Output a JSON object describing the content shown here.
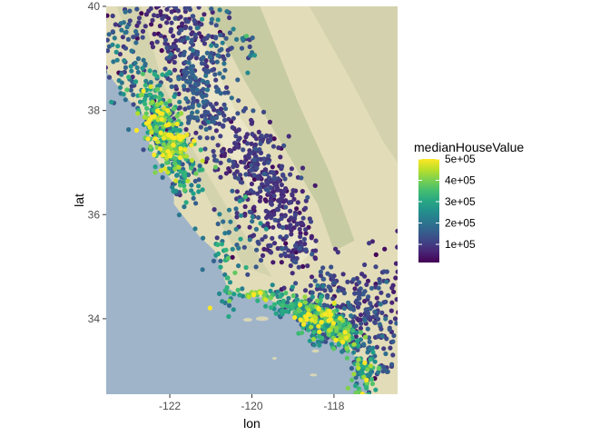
{
  "chart_data": {
    "type": "scatter",
    "title": "",
    "xlabel": "lon",
    "ylabel": "lat",
    "xlim": [
      -123.55,
      -116.45
    ],
    "ylim": [
      32.55,
      40.0
    ],
    "x_ticks": [
      -122,
      -120,
      -118
    ],
    "x_tick_labels": [
      "-122",
      "-120",
      "-118"
    ],
    "y_ticks": [
      34,
      36,
      38,
      40
    ],
    "y_tick_labels": [
      "34",
      "36",
      "38",
      "40"
    ],
    "grid": false,
    "basemap": "terrain",
    "legend": {
      "title": "medianHouseValue",
      "placement": "right",
      "min": 15000,
      "max": 500000,
      "ticks": [
        100000,
        200000,
        300000,
        400000,
        500000
      ],
      "tick_labels": [
        "1e+05",
        "2e+05",
        "3e+05",
        "4e+05",
        "5e+05"
      ],
      "palette": [
        "#440154",
        "#3b528b",
        "#21918c",
        "#5ec962",
        "#fde725"
      ]
    },
    "series": [
      {
        "clusters": [
          {
            "lon": -122.1,
            "lat": 37.5,
            "sd_lon": 0.25,
            "sd_lat": 0.3,
            "n": 140,
            "value_mean": 330000,
            "value_sd": 120000
          },
          {
            "lon": -122.3,
            "lat": 37.85,
            "sd_lon": 0.15,
            "sd_lat": 0.15,
            "n": 90,
            "value_mean": 300000,
            "value_sd": 140000
          },
          {
            "lon": -121.9,
            "lat": 37.3,
            "sd_lon": 0.2,
            "sd_lat": 0.15,
            "n": 80,
            "value_mean": 380000,
            "value_sd": 100000
          },
          {
            "lon": -121.6,
            "lat": 37.0,
            "sd_lon": 0.3,
            "sd_lat": 0.25,
            "n": 40,
            "value_mean": 300000,
            "value_sd": 110000
          },
          {
            "lon": -122.5,
            "lat": 38.3,
            "sd_lon": 0.3,
            "sd_lat": 0.3,
            "n": 70,
            "value_mean": 260000,
            "value_sd": 90000
          },
          {
            "lon": -123.0,
            "lat": 38.8,
            "sd_lon": 0.3,
            "sd_lat": 0.4,
            "n": 40,
            "value_mean": 180000,
            "value_sd": 60000
          },
          {
            "lon": -123.3,
            "lat": 39.5,
            "sd_lon": 0.2,
            "sd_lat": 0.4,
            "n": 35,
            "value_mean": 150000,
            "value_sd": 50000
          },
          {
            "lon": -121.4,
            "lat": 38.6,
            "sd_lon": 0.3,
            "sd_lat": 0.3,
            "n": 110,
            "value_mean": 130000,
            "value_sd": 40000
          },
          {
            "lon": -121.6,
            "lat": 39.3,
            "sd_lon": 0.4,
            "sd_lat": 0.4,
            "n": 90,
            "value_mean": 90000,
            "value_sd": 30000
          },
          {
            "lon": -122.1,
            "lat": 39.7,
            "sd_lon": 0.4,
            "sd_lat": 0.25,
            "n": 70,
            "value_mean": 85000,
            "value_sd": 30000
          },
          {
            "lon": -120.9,
            "lat": 39.3,
            "sd_lon": 0.3,
            "sd_lat": 0.4,
            "n": 50,
            "value_mean": 150000,
            "value_sd": 50000
          },
          {
            "lon": -120.1,
            "lat": 39.2,
            "sd_lon": 0.1,
            "sd_lat": 0.2,
            "n": 12,
            "value_mean": 180000,
            "value_sd": 70000
          },
          {
            "lon": -121.0,
            "lat": 37.9,
            "sd_lon": 0.4,
            "sd_lat": 0.3,
            "n": 80,
            "value_mean": 120000,
            "value_sd": 40000
          },
          {
            "lon": -120.4,
            "lat": 37.3,
            "sd_lon": 0.45,
            "sd_lat": 0.35,
            "n": 90,
            "value_mean": 90000,
            "value_sd": 30000
          },
          {
            "lon": -119.8,
            "lat": 36.8,
            "sd_lon": 0.35,
            "sd_lat": 0.35,
            "n": 130,
            "value_mean": 85000,
            "value_sd": 30000
          },
          {
            "lon": -119.3,
            "lat": 36.2,
            "sd_lon": 0.4,
            "sd_lat": 0.4,
            "n": 110,
            "value_mean": 75000,
            "value_sd": 25000
          },
          {
            "lon": -119.0,
            "lat": 35.4,
            "sd_lon": 0.35,
            "sd_lat": 0.3,
            "n": 80,
            "value_mean": 85000,
            "value_sd": 30000
          },
          {
            "lon": -120.4,
            "lat": 35.6,
            "sd_lon": 0.4,
            "sd_lat": 0.4,
            "n": 50,
            "value_mean": 200000,
            "value_sd": 70000
          },
          {
            "lon": -121.7,
            "lat": 36.6,
            "sd_lon": 0.2,
            "sd_lat": 0.2,
            "n": 40,
            "value_mean": 240000,
            "value_sd": 90000
          },
          {
            "lon": -120.6,
            "lat": 34.8,
            "sd_lon": 0.2,
            "sd_lat": 0.3,
            "n": 30,
            "value_mean": 250000,
            "value_sd": 80000
          },
          {
            "lon": -119.8,
            "lat": 34.45,
            "sd_lon": 0.25,
            "sd_lat": 0.06,
            "n": 40,
            "value_mean": 340000,
            "value_sd": 100000
          },
          {
            "lon": -119.1,
            "lat": 34.25,
            "sd_lon": 0.25,
            "sd_lat": 0.1,
            "n": 50,
            "value_mean": 260000,
            "value_sd": 80000
          },
          {
            "lon": -118.4,
            "lat": 34.05,
            "sd_lon": 0.28,
            "sd_lat": 0.15,
            "n": 200,
            "value_mean": 300000,
            "value_sd": 140000
          },
          {
            "lon": -118.15,
            "lat": 33.85,
            "sd_lon": 0.25,
            "sd_lat": 0.15,
            "n": 120,
            "value_mean": 220000,
            "value_sd": 90000
          },
          {
            "lon": -117.75,
            "lat": 33.65,
            "sd_lon": 0.2,
            "sd_lat": 0.15,
            "n": 90,
            "value_mean": 320000,
            "value_sd": 100000
          },
          {
            "lon": -117.25,
            "lat": 32.95,
            "sd_lon": 0.15,
            "sd_lat": 0.25,
            "n": 90,
            "value_mean": 270000,
            "value_sd": 120000
          },
          {
            "lon": -117.3,
            "lat": 34.0,
            "sd_lon": 0.5,
            "sd_lat": 0.25,
            "n": 120,
            "value_mean": 110000,
            "value_sd": 40000
          },
          {
            "lon": -117.6,
            "lat": 34.4,
            "sd_lon": 0.6,
            "sd_lat": 0.3,
            "n": 50,
            "value_mean": 100000,
            "value_sd": 40000
          },
          {
            "lon": -116.9,
            "lat": 33.3,
            "sd_lon": 0.25,
            "sd_lat": 0.35,
            "n": 40,
            "value_mean": 140000,
            "value_sd": 50000
          },
          {
            "lon": -118.3,
            "lat": 34.6,
            "sd_lon": 0.4,
            "sd_lat": 0.2,
            "n": 50,
            "value_mean": 110000,
            "value_sd": 40000
          },
          {
            "lon": -117.0,
            "lat": 34.8,
            "sd_lon": 0.4,
            "sd_lat": 0.4,
            "n": 30,
            "value_mean": 80000,
            "value_sd": 30000
          }
        ]
      }
    ]
  }
}
